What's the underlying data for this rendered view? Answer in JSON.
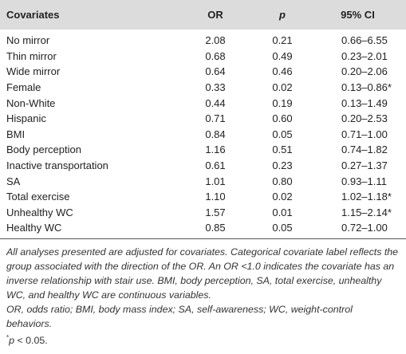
{
  "table": {
    "header": [
      "Covariates",
      "OR",
      "p",
      "95% CI"
    ],
    "rows": [
      [
        "No mirror",
        "2.08",
        "0.21",
        "0.66–6.55"
      ],
      [
        "Thin mirror",
        "0.68",
        "0.49",
        "0.23–2.01"
      ],
      [
        "Wide mirror",
        "0.64",
        "0.46",
        "0.20–2.06"
      ],
      [
        "Female",
        "0.33",
        "0.02",
        "0.13–0.86*"
      ],
      [
        "Non-White",
        "0.44",
        "0.19",
        "0.13–1.49"
      ],
      [
        "Hispanic",
        "0.71",
        "0.60",
        "0.20–2.53"
      ],
      [
        "BMI",
        "0.84",
        "0.05",
        "0.71–1.00"
      ],
      [
        "Body perception",
        "1.16",
        "0.51",
        "0.74–1.82"
      ],
      [
        "Inactive transportation",
        "0.61",
        "0.23",
        "0.27–1.37"
      ],
      [
        "SA",
        "1.01",
        "0.80",
        "0.93–1.11"
      ],
      [
        "Total exercise",
        "1.10",
        "0.02",
        "1.02–1.18*"
      ],
      [
        "Unhealthy WC",
        "1.57",
        "0.01",
        "1.15–2.14*"
      ],
      [
        "Healthy WC",
        "0.85",
        "0.05",
        "0.72–1.00"
      ]
    ]
  },
  "footnotes": {
    "note": "All analyses presented are adjusted for covariates. Categorical covariate label reflects the group associated with the direction of the OR. An OR <1.0 indicates the covariate has an inverse relationship with stair use. BMI, body perception, SA, total exercise, unhealthy WC, and healthy WC are continuous variables.",
    "abbreviations": "OR, odds ratio; BMI, body mass index; SA, self-awareness; WC, weight-control behaviors.",
    "significance": {
      "marker": "*",
      "symbol": "p",
      "text": " < 0.05."
    }
  }
}
